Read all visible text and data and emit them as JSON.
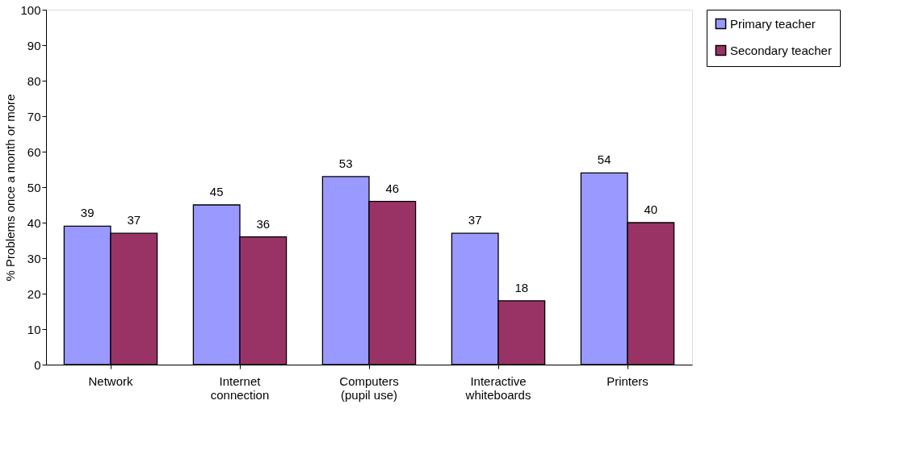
{
  "chart_data": {
    "type": "bar",
    "ylabel": "% Problems once a month or more",
    "categories": [
      "Network",
      "Internet\nconnection",
      "Computers\n(pupil use)",
      "Interactive\nwhiteboards",
      "Printers"
    ],
    "series": [
      {
        "name": "Primary teacher",
        "color": "#9999ff",
        "values": [
          39,
          45,
          53,
          37,
          54
        ]
      },
      {
        "name": "Secondary teacher",
        "color": "#993366",
        "values": [
          37,
          36,
          46,
          18,
          40
        ]
      }
    ],
    "ylim": [
      0,
      100
    ],
    "yticks": [
      0,
      10,
      20,
      30,
      40,
      50,
      60,
      70,
      80,
      90,
      100
    ],
    "grid": false,
    "legend": "right",
    "data_labels": true
  }
}
